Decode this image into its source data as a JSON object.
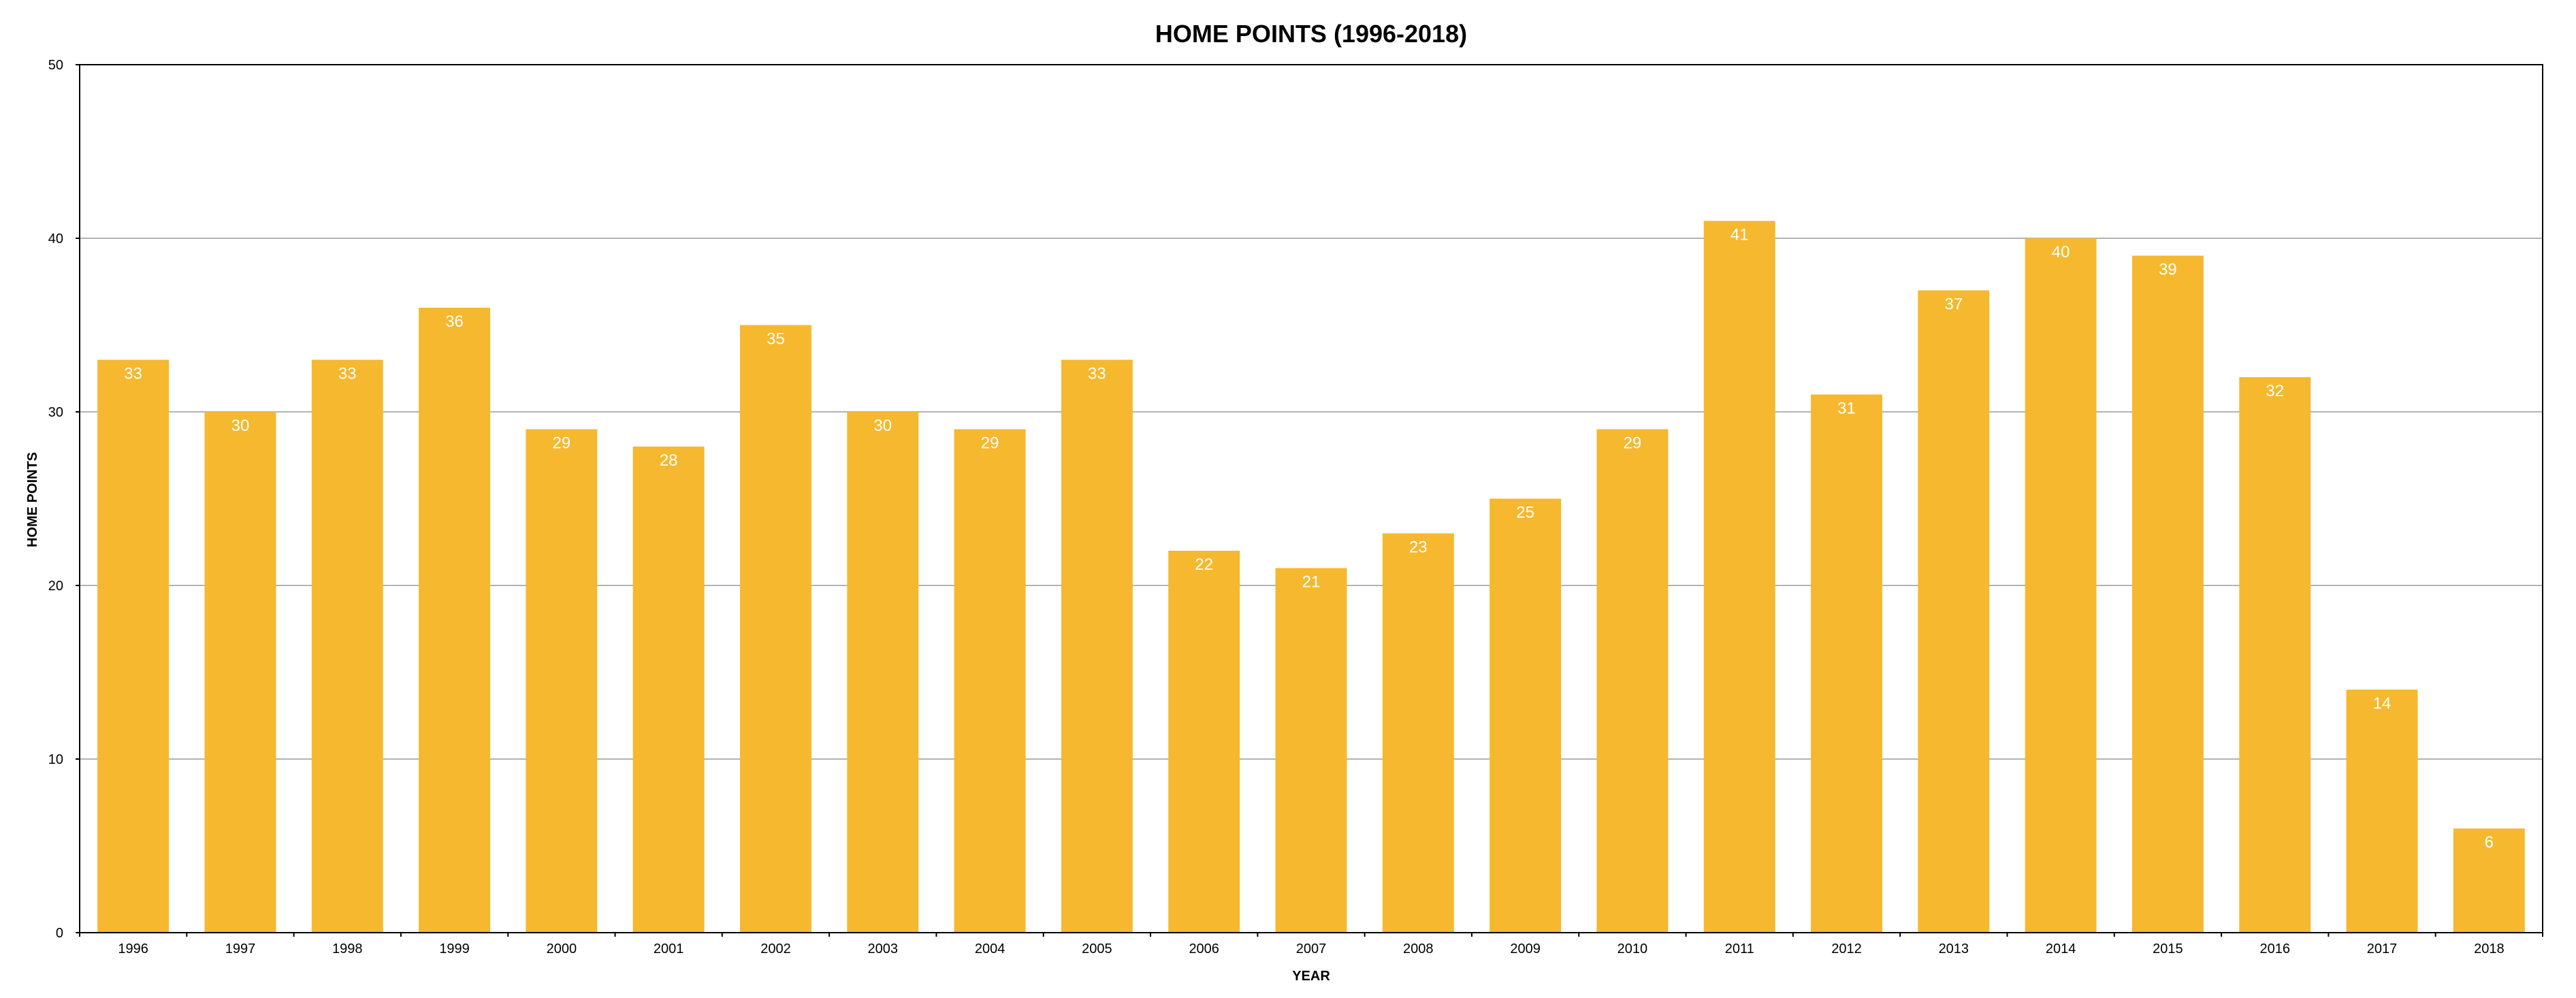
{
  "chart_data": {
    "type": "bar",
    "title": "HOME POINTS (1996-2018)",
    "xlabel": "YEAR",
    "ylabel": "HOME POINTS",
    "categories": [
      "1996",
      "1997",
      "1998",
      "1999",
      "2000",
      "2001",
      "2002",
      "2003",
      "2004",
      "2005",
      "2006",
      "2007",
      "2008",
      "2009",
      "2010",
      "2011",
      "2012",
      "2013",
      "2014",
      "2015",
      "2016",
      "2017",
      "2018"
    ],
    "values": [
      33,
      30,
      33,
      36,
      29,
      28,
      35,
      30,
      29,
      33,
      22,
      21,
      23,
      25,
      29,
      41,
      31,
      37,
      40,
      39,
      32,
      14,
      6
    ],
    "ylim": [
      0,
      50
    ],
    "yticks": [
      0,
      10,
      20,
      30,
      40,
      50
    ],
    "grid": true,
    "legend": "none",
    "data_labels": true,
    "colors": {
      "bar": "#F5B82E",
      "grid": "#b3b3b3",
      "axis": "#000000",
      "data_label": "#ffffff"
    }
  }
}
